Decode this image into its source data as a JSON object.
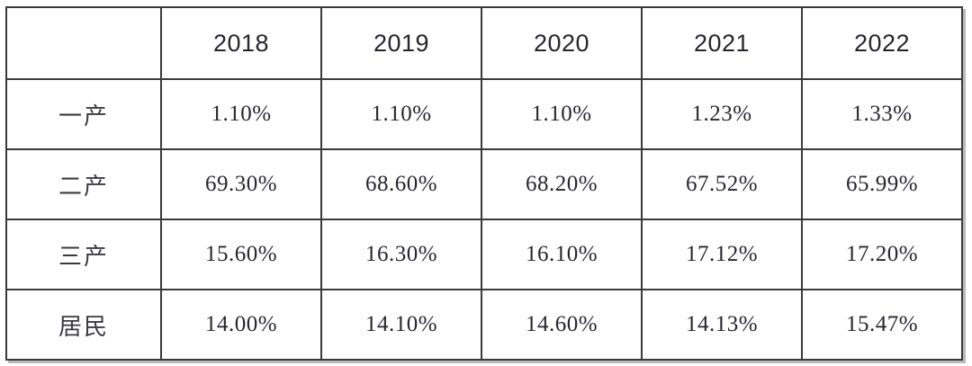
{
  "chart_data": {
    "type": "table",
    "title": "",
    "corner_label": "",
    "columns": [
      "2018",
      "2019",
      "2020",
      "2021",
      "2022"
    ],
    "rows": [
      {
        "label": "一产",
        "values": [
          "1.10%",
          "1.10%",
          "1.10%",
          "1.23%",
          "1.33%"
        ]
      },
      {
        "label": "二产",
        "values": [
          "69.30%",
          "68.60%",
          "68.20%",
          "67.52%",
          "65.99%"
        ]
      },
      {
        "label": "三产",
        "values": [
          "15.60%",
          "16.30%",
          "16.10%",
          "17.12%",
          "17.20%"
        ]
      },
      {
        "label": "居民",
        "values": [
          "14.00%",
          "14.10%",
          "14.60%",
          "14.13%",
          "15.47%"
        ]
      }
    ],
    "units": "percent",
    "colors": {
      "border": "#3a3a3a",
      "header_text": "#26262e",
      "value_text": "#27272f",
      "background": "#ffffff",
      "shadow": "#828282"
    }
  }
}
